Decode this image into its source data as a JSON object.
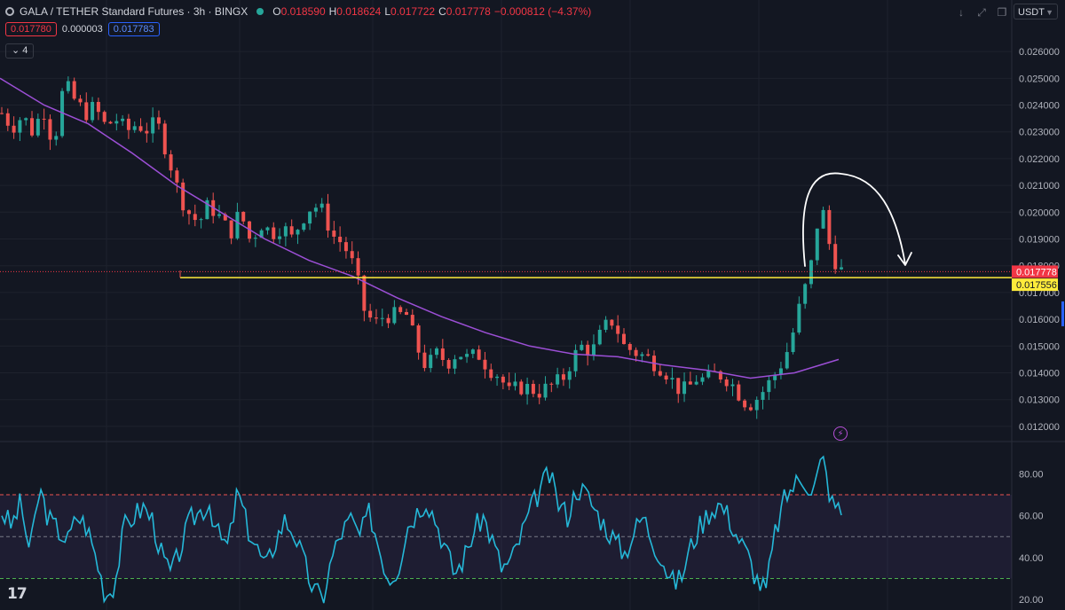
{
  "header": {
    "symbol_title": "GALA / TETHER Standard Futures · 3h · BINGX",
    "ohlc": [
      {
        "k": "O",
        "v": "0.018590"
      },
      {
        "k": "H",
        "v": "0.018624"
      },
      {
        "k": "L",
        "v": "0.017722"
      },
      {
        "k": "C",
        "v": "0.017778"
      }
    ],
    "change": "−0.000812 (−4.37%)"
  },
  "quote": {
    "bid": "0.017780",
    "spread": "0.000003",
    "ask": "0.017783"
  },
  "indicators_collapse": {
    "icon": "chevron-down-icon",
    "count": "4"
  },
  "toolbar": {
    "currency": "USDT",
    "icons": [
      "arrow-down-icon",
      "expand-icon",
      "restore-icon"
    ]
  },
  "brand": {
    "logo_text": "17"
  },
  "colors": {
    "background": "#131722",
    "up": "#26a69a",
    "down": "#ef5350",
    "ma": "#9c4fd6",
    "support": "#ffeb3b",
    "rsi": "#25b8d8",
    "last_price": "#f23645"
  },
  "chart_data": [
    {
      "type": "candlestick",
      "pane": "price",
      "y_ticks": [
        "0.026000",
        "0.025000",
        "0.024000",
        "0.023000",
        "0.022000",
        "0.021000",
        "0.020000",
        "0.019000",
        "0.018000",
        "0.017000",
        "0.016000",
        "0.015000",
        "0.014000",
        "0.013000",
        "0.012000"
      ],
      "ylim": [
        0.0115,
        0.0266
      ],
      "close_path": [
        0.0237,
        0.0232,
        0.0236,
        0.023,
        0.0239,
        0.0225,
        0.0248,
        0.0242,
        0.0237,
        0.0239,
        0.0232,
        0.0235,
        0.023,
        0.0233,
        0.0231,
        0.0233,
        0.0222,
        0.0208,
        0.02,
        0.0196,
        0.0203,
        0.0198,
        0.0192,
        0.02,
        0.0189,
        0.0196,
        0.0192,
        0.0195,
        0.019,
        0.0198,
        0.0203,
        0.02,
        0.0191,
        0.0188,
        0.0179,
        0.0163,
        0.0158,
        0.0162,
        0.0161,
        0.0162,
        0.015,
        0.0142,
        0.0147,
        0.0144,
        0.0148,
        0.0145,
        0.0147,
        0.0142,
        0.0139,
        0.0132,
        0.0135,
        0.0134,
        0.0133,
        0.0135,
        0.0137,
        0.0145,
        0.015,
        0.0148,
        0.0156,
        0.016,
        0.015,
        0.0148,
        0.0146,
        0.0144,
        0.0141,
        0.0135,
        0.0133,
        0.0138,
        0.0137,
        0.014,
        0.0138,
        0.0133,
        0.0128,
        0.0131,
        0.0136,
        0.0142,
        0.015,
        0.0165,
        0.0178,
        0.0204,
        0.0185,
        0.0178
      ],
      "candles": 140,
      "moving_average": [
        0.025,
        0.024,
        0.0233,
        0.0222,
        0.021,
        0.02,
        0.019,
        0.0182,
        0.0176,
        0.0168,
        0.0161,
        0.0155,
        0.015,
        0.0147,
        0.0146,
        0.0143,
        0.0141,
        0.0138,
        0.014,
        0.0145
      ],
      "support_line": 0.017556,
      "last_price": 0.017778,
      "labels": {
        "last_price": "0.017778",
        "support": "0.017556"
      },
      "annotation": "hand-drawn arc arrow from spike to the right"
    },
    {
      "type": "line",
      "pane": "rsi",
      "y_ticks": [
        "80.00",
        "60.00",
        "40.00",
        "20.00"
      ],
      "ylim": [
        15,
        92
      ],
      "bands": {
        "upper": 70,
        "middle": 50,
        "lower": 30
      },
      "path": [
        62,
        55,
        66,
        42,
        73,
        58,
        53,
        48,
        60,
        55,
        40,
        22,
        28,
        55,
        60,
        64,
        58,
        40,
        32,
        45,
        58,
        62,
        66,
        50,
        45,
        72,
        55,
        45,
        35,
        48,
        58,
        52,
        38,
        25,
        20,
        40,
        52,
        58,
        50,
        62,
        45,
        30,
        35,
        55,
        62,
        68,
        58,
        45,
        32,
        40,
        52,
        60,
        48,
        35,
        38,
        50,
        62,
        72,
        80,
        66,
        60,
        74,
        70,
        62,
        55,
        48,
        42,
        52,
        60,
        48,
        40,
        28,
        30,
        45,
        55,
        62,
        66,
        60,
        50,
        42,
        30,
        24,
        52,
        68,
        75,
        78,
        72,
        88,
        66,
        62
      ]
    }
  ]
}
